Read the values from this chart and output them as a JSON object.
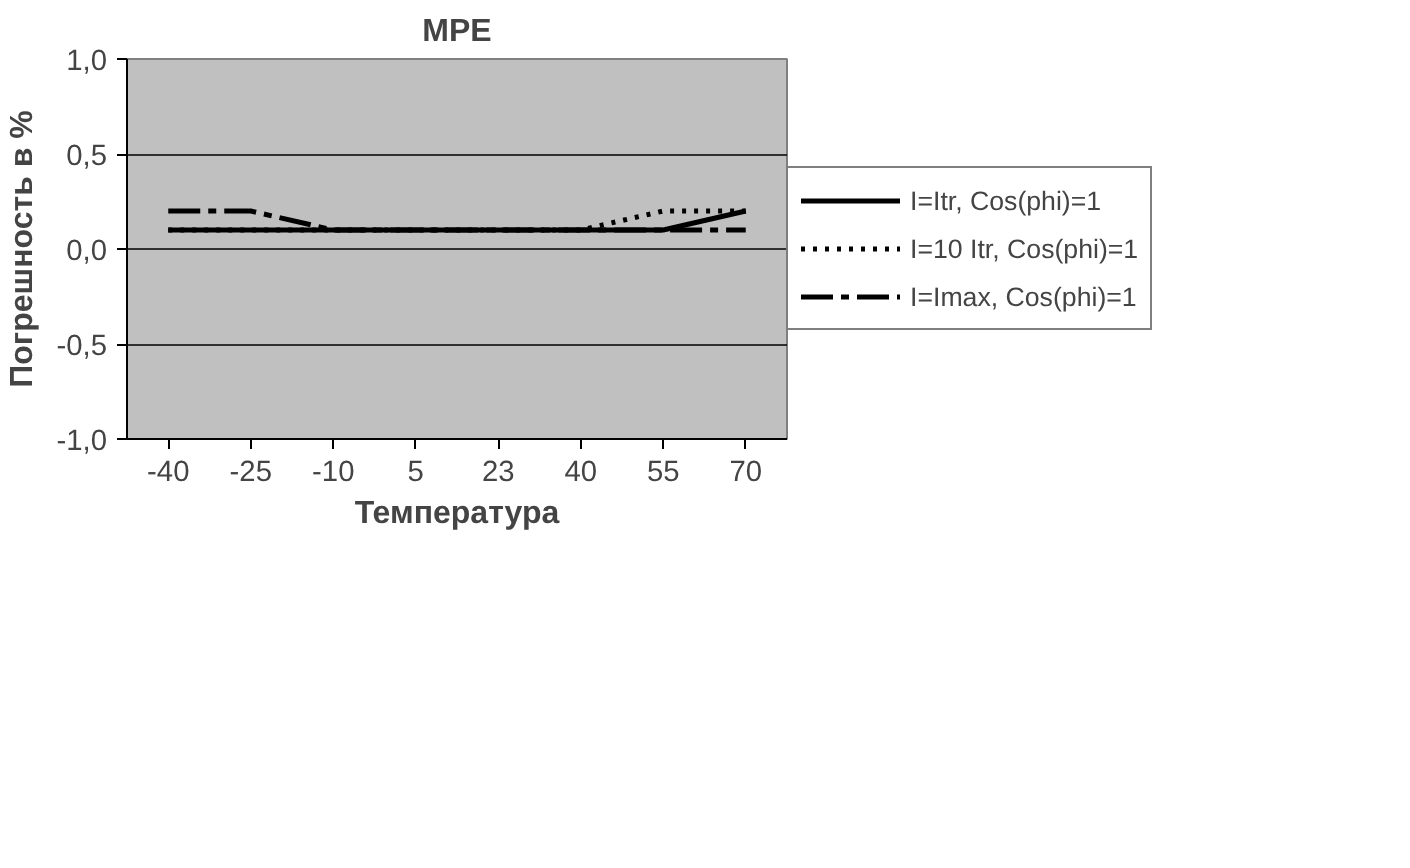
{
  "chart_data": {
    "type": "line",
    "title": "MPE",
    "xlabel": "Температура",
    "ylabel": "Погрешность в %",
    "categories": [
      "-40",
      "-25",
      "-10",
      "5",
      "23",
      "40",
      "55",
      "70"
    ],
    "series": [
      {
        "name": "I=Itr, Cos(phi)=1",
        "color": "#000000",
        "line_style": "solid",
        "values": [
          0.1,
          0.1,
          0.1,
          0.1,
          0.1,
          0.1,
          0.1,
          0.2
        ]
      },
      {
        "name": "I=10 Itr, Cos(phi)=1",
        "color": "#000000",
        "line_style": "dotted",
        "values": [
          0.1,
          0.1,
          0.1,
          0.1,
          0.1,
          0.1,
          0.2,
          0.2
        ]
      },
      {
        "name": "I=Imax, Cos(phi)=1",
        "color": "#000000",
        "line_style": "dashdot",
        "values": [
          0.2,
          0.2,
          0.1,
          0.1,
          0.1,
          0.1,
          0.1,
          0.1
        ]
      }
    ],
    "ylim": [
      -1,
      1
    ],
    "yticks": [
      {
        "value": -1,
        "label": "-1,0"
      },
      {
        "value": -0.5,
        "label": "-0,5"
      },
      {
        "value": 0,
        "label": "0,0"
      },
      {
        "value": 0.5,
        "label": "0,5"
      },
      {
        "value": 1,
        "label": "1,0"
      }
    ],
    "grid": "y",
    "legend": "right",
    "marker": "none"
  }
}
